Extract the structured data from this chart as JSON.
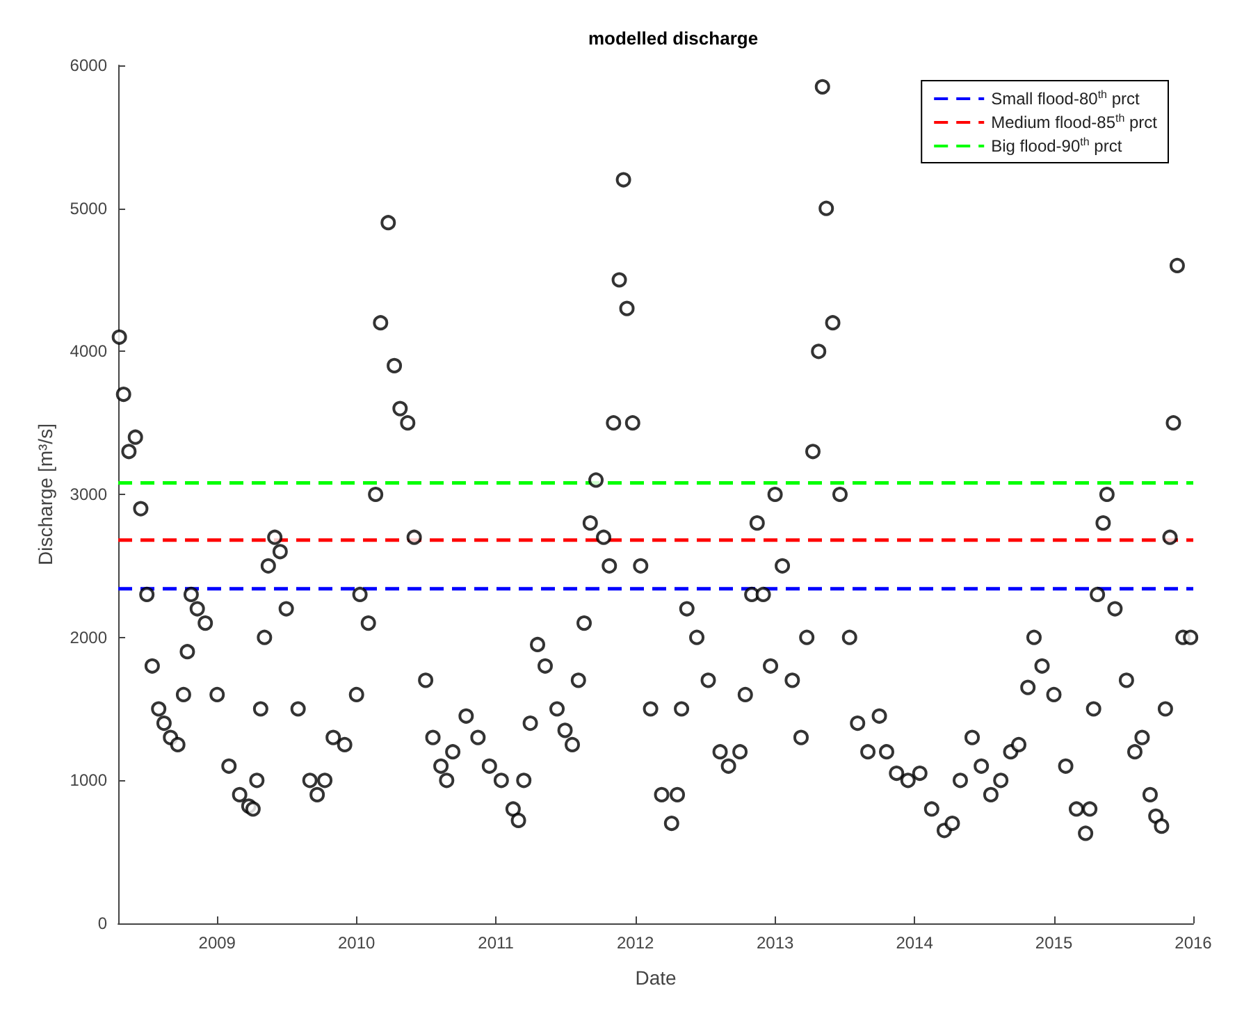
{
  "chart_data": {
    "type": "scatter",
    "title": "modelled discharge",
    "xlabel": "Date",
    "ylabel": "Discharge [m³/s]",
    "marker": "circle",
    "grid": false,
    "legend": "top right",
    "xlim": [
      "2008-04-17",
      "2016-01-01"
    ],
    "xticks": [
      {
        "value": "2009",
        "label": "2009"
      },
      {
        "value": "2010",
        "label": "2010"
      },
      {
        "value": "2011",
        "label": "2011"
      },
      {
        "value": "2012",
        "label": "2012"
      },
      {
        "value": "2013",
        "label": "2013"
      },
      {
        "value": "2014",
        "label": "2014"
      },
      {
        "value": "2015",
        "label": "2015"
      },
      {
        "value": "2016",
        "label": "2016"
      }
    ],
    "ylim": [
      0,
      6000
    ],
    "yticks": [
      0,
      1000,
      2000,
      3000,
      4000,
      5000,
      6000
    ],
    "ref_lines": [
      {
        "axis": "y",
        "value": 2340,
        "label": "Small flood-80$^{th}$ prct",
        "color": "#0000ff",
        "line_style": "dashed"
      },
      {
        "axis": "y",
        "value": 2680,
        "label": "Medium flood-85$^{th}$ prct",
        "color": "#ff0000",
        "line_style": "dashed"
      },
      {
        "axis": "y",
        "value": 3080,
        "label": "Big flood-90$^{th}$ prct",
        "color": "#00ff00",
        "line_style": "dashed"
      }
    ],
    "series": [
      {
        "color": "#000000",
        "x": [
          "2008-04-20",
          "2008-05-01",
          "2008-05-15",
          "2008-06-01",
          "2008-06-15",
          "2008-07-01",
          "2008-07-15",
          "2008-08-01",
          "2008-08-15",
          "2008-09-01",
          "2008-09-20",
          "2008-10-05",
          "2008-10-15",
          "2008-10-25",
          "2008-11-10",
          "2008-12-01",
          "2009-01-01",
          "2009-02-01",
          "2009-03-01",
          "2009-03-25",
          "2009-04-05",
          "2009-04-15",
          "2009-04-25",
          "2009-05-05",
          "2009-05-15",
          "2009-06-01",
          "2009-06-15",
          "2009-07-01",
          "2009-08-01",
          "2009-09-01",
          "2009-09-20",
          "2009-10-10",
          "2009-11-01",
          "2009-12-01",
          "2010-01-01",
          "2010-01-10",
          "2010-02-01",
          "2010-02-20",
          "2010-03-05",
          "2010-03-25",
          "2010-04-10",
          "2010-04-25",
          "2010-05-15",
          "2010-06-01",
          "2010-07-01",
          "2010-07-20",
          "2010-08-10",
          "2010-08-25",
          "2010-09-10",
          "2010-10-15",
          "2010-11-15",
          "2010-12-15",
          "2011-01-15",
          "2011-02-15",
          "2011-03-01",
          "2011-03-15",
          "2011-04-01",
          "2011-04-20",
          "2011-05-10",
          "2011-06-10",
          "2011-07-01",
          "2011-07-20",
          "2011-08-05",
          "2011-08-20",
          "2011-09-05",
          "2011-09-20",
          "2011-10-10",
          "2011-10-25",
          "2011-11-05",
          "2011-11-20",
          "2011-12-01",
          "2011-12-10",
          "2011-12-25",
          "2012-01-15",
          "2012-02-10",
          "2012-03-10",
          "2012-04-05",
          "2012-04-20",
          "2012-05-01",
          "2012-05-15",
          "2012-06-10",
          "2012-07-10",
          "2012-08-10",
          "2012-09-01",
          "2012-10-01",
          "2012-10-15",
          "2012-11-01",
          "2012-11-15",
          "2012-12-01",
          "2012-12-20",
          "2013-01-01",
          "2013-01-20",
          "2013-02-15",
          "2013-03-10",
          "2013-03-25",
          "2013-04-10",
          "2013-04-25",
          "2013-05-05",
          "2013-05-15",
          "2013-06-01",
          "2013-06-20",
          "2013-07-15",
          "2013-08-05",
          "2013-09-01",
          "2013-10-01",
          "2013-10-20",
          "2013-11-15",
          "2013-12-15",
          "2014-01-15",
          "2014-02-15",
          "2014-03-20",
          "2014-04-10",
          "2014-05-01",
          "2014-06-01",
          "2014-06-25",
          "2014-07-20",
          "2014-08-15",
          "2014-09-10",
          "2014-10-01",
          "2014-10-25",
          "2014-11-10",
          "2014-12-01",
          "2015-01-01",
          "2015-02-01",
          "2015-03-01",
          "2015-03-25",
          "2015-04-05",
          "2015-04-15",
          "2015-04-25",
          "2015-05-10",
          "2015-05-20",
          "2015-06-10",
          "2015-07-10",
          "2015-08-01",
          "2015-08-20",
          "2015-09-10",
          "2015-09-25",
          "2015-10-10",
          "2015-10-20",
          "2015-11-01",
          "2015-11-10",
          "2015-11-20",
          "2015-12-05",
          "2015-12-25"
        ],
        "values": [
          4100,
          3700,
          3300,
          3400,
          2900,
          2300,
          1800,
          1500,
          1400,
          1300,
          1250,
          1600,
          1900,
          2300,
          2200,
          2100,
          1600,
          1100,
          900,
          820,
          800,
          1000,
          1500,
          2000,
          2500,
          2700,
          2600,
          2200,
          1500,
          1000,
          900,
          1000,
          1300,
          1250,
          1600,
          2300,
          2100,
          3000,
          4200,
          4900,
          3900,
          3600,
          3500,
          2700,
          1700,
          1300,
          1100,
          1000,
          1200,
          1450,
          1300,
          1100,
          1000,
          800,
          720,
          1000,
          1400,
          1950,
          1800,
          1500,
          1350,
          1250,
          1700,
          2100,
          2800,
          3100,
          2700,
          2500,
          3500,
          4500,
          5200,
          4300,
          3500,
          2500,
          1500,
          900,
          700,
          900,
          1500,
          2200,
          2000,
          1700,
          1200,
          1100,
          1200,
          1600,
          2300,
          2800,
          2300,
          1800,
          3000,
          2500,
          1700,
          1300,
          2000,
          3300,
          4000,
          5850,
          5000,
          4200,
          3000,
          2000,
          1400,
          1200,
          1450,
          1200,
          1050,
          1000,
          1050,
          800,
          650,
          700,
          1000,
          1300,
          1100,
          900,
          1000,
          1200,
          1250,
          1650,
          2000,
          1800,
          1600,
          1100,
          800,
          630,
          800,
          1500,
          2300,
          2800,
          3000,
          2200,
          1700,
          1200,
          1300,
          900,
          750,
          680,
          1500,
          2700,
          3500,
          4600,
          2000,
          2000
        ]
      }
    ]
  }
}
